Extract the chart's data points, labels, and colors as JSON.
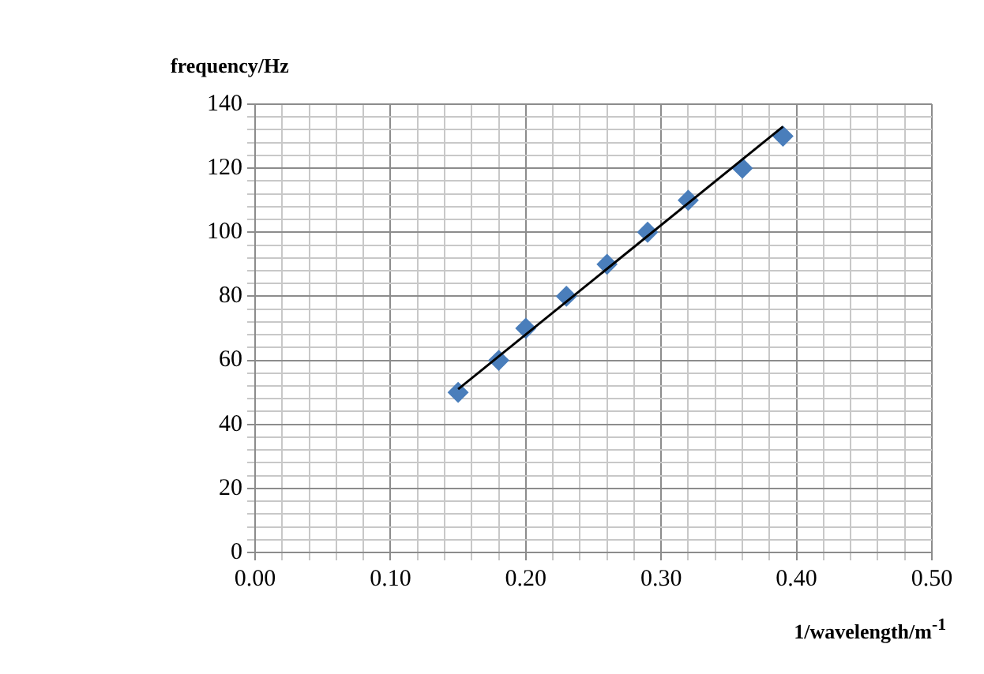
{
  "chart_data": {
    "type": "scatter",
    "xlabel": "1/wavelength/m$^{-1}$",
    "ylabel": "frequency/Hz",
    "x": [
      0.15,
      0.18,
      0.2,
      0.23,
      0.26,
      0.29,
      0.32,
      0.36,
      0.39
    ],
    "series": [
      {
        "type": "scatter",
        "color": "#4a7ebb",
        "marker": "diamond",
        "values": [
          50,
          60,
          70,
          80,
          90,
          100,
          110,
          120,
          130
        ]
      },
      {
        "type": "line",
        "color": "#000000",
        "marker": "none",
        "line_style": "solid",
        "x": [
          0.15,
          0.39
        ],
        "values": [
          51,
          133
        ]
      }
    ],
    "xlim": [
      0,
      0.5
    ],
    "ylim": [
      0,
      140
    ],
    "xticks": [
      {
        "value": 0,
        "label": "0.00"
      },
      {
        "value": 0.02,
        "label": null
      },
      {
        "value": 0.04,
        "label": null
      },
      {
        "value": 0.06,
        "label": null
      },
      {
        "value": 0.08,
        "label": null
      },
      {
        "value": 0.1,
        "label": "0.10"
      },
      {
        "value": 0.12,
        "label": null
      },
      {
        "value": 0.14,
        "label": null
      },
      {
        "value": 0.16,
        "label": null
      },
      {
        "value": 0.18,
        "label": null
      },
      {
        "value": 0.2,
        "label": "0.20"
      },
      {
        "value": 0.22,
        "label": null
      },
      {
        "value": 0.24,
        "label": null
      },
      {
        "value": 0.26,
        "label": null
      },
      {
        "value": 0.28,
        "label": null
      },
      {
        "value": 0.3,
        "label": "0.30"
      },
      {
        "value": 0.32,
        "label": null
      },
      {
        "value": 0.34,
        "label": null
      },
      {
        "value": 0.36,
        "label": null
      },
      {
        "value": 0.38,
        "label": null
      },
      {
        "value": 0.4,
        "label": "0.40"
      },
      {
        "value": 0.42,
        "label": null
      },
      {
        "value": 0.44,
        "label": null
      },
      {
        "value": 0.46,
        "label": null
      },
      {
        "value": 0.48,
        "label": null
      },
      {
        "value": 0.5,
        "label": "0.50"
      }
    ],
    "yticks": [
      0,
      {
        "value": 4,
        "label": null
      },
      {
        "value": 8,
        "label": null
      },
      {
        "value": 12,
        "label": null
      },
      {
        "value": 16,
        "label": null
      },
      20,
      {
        "value": 24,
        "label": null
      },
      {
        "value": 28,
        "label": null
      },
      {
        "value": 32,
        "label": null
      },
      {
        "value": 36,
        "label": null
      },
      40,
      {
        "value": 44,
        "label": null
      },
      {
        "value": 48,
        "label": null
      },
      {
        "value": 52,
        "label": null
      },
      {
        "value": 56,
        "label": null
      },
      60,
      {
        "value": 64,
        "label": null
      },
      {
        "value": 68,
        "label": null
      },
      {
        "value": 72,
        "label": null
      },
      {
        "value": 76,
        "label": null
      },
      80,
      {
        "value": 84,
        "label": null
      },
      {
        "value": 88,
        "label": null
      },
      {
        "value": 92,
        "label": null
      },
      {
        "value": 96,
        "label": null
      },
      100,
      {
        "value": 104,
        "label": null
      },
      {
        "value": 108,
        "label": null
      },
      {
        "value": 112,
        "label": null
      },
      {
        "value": 116,
        "label": null
      },
      120,
      {
        "value": 124,
        "label": null
      },
      {
        "value": 128,
        "label": null
      },
      {
        "value": 132,
        "label": null
      },
      {
        "value": 136,
        "label": null
      },
      140
    ],
    "grid": true,
    "legend": false
  }
}
